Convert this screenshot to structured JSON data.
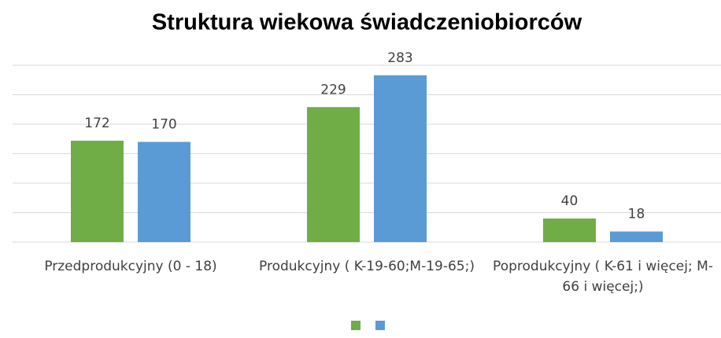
{
  "chart_data": {
    "type": "bar",
    "title": "Struktura wiekowa świadczeniobiorców",
    "categories": [
      "Przedprodukcyjny (0 - 18)",
      "Produkcyjny ( K-19-60;M-19-65;)",
      "Poprodukcyjny ( K-61 i więcej; M-66 i więcej;)"
    ],
    "series": [
      {
        "color": "#70ad47",
        "values": [
          172,
          229,
          40
        ]
      },
      {
        "color": "#5b9bd5",
        "values": [
          170,
          283,
          18
        ]
      }
    ],
    "ylim": [
      0,
      300
    ],
    "yticks": [
      0,
      50,
      100,
      150,
      200,
      250,
      300
    ],
    "grid": true
  }
}
